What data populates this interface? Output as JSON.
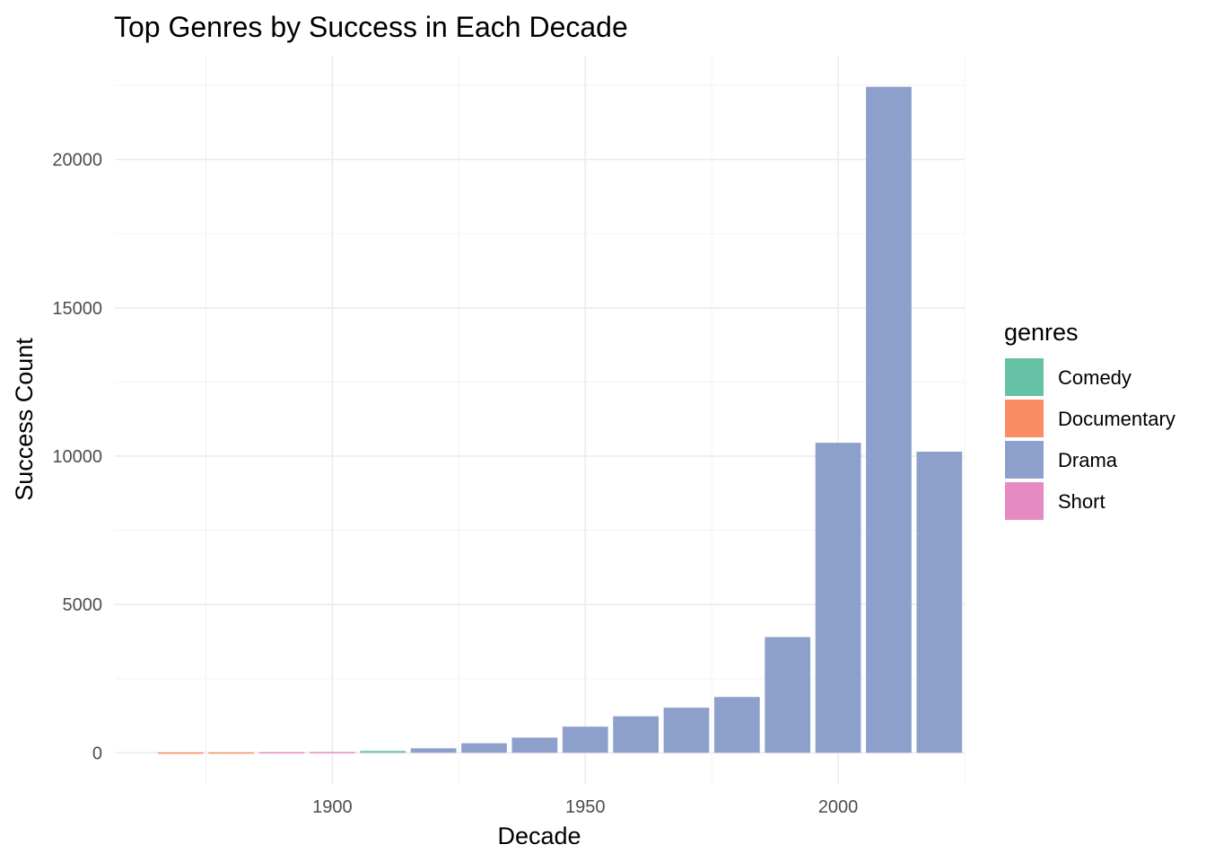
{
  "chart_data": {
    "type": "bar",
    "title": "Top Genres by Success in Each Decade",
    "xlabel": "Decade",
    "ylabel": "Success Count",
    "xlim": [
      1857,
      2025
    ],
    "ylim": [
      -1050,
      23500
    ],
    "x_ticks": [
      1900,
      1950,
      2000
    ],
    "y_ticks": [
      0,
      5000,
      10000,
      15000,
      20000
    ],
    "grid": true,
    "legend": {
      "title": "genres",
      "position": "right",
      "entries": [
        {
          "name": "Comedy",
          "color": "#66C2A5"
        },
        {
          "name": "Documentary",
          "color": "#FC8D62"
        },
        {
          "name": "Drama",
          "color": "#8DA0CB"
        },
        {
          "name": "Short",
          "color": "#E78AC3"
        }
      ]
    },
    "bars": [
      {
        "decade": 1870,
        "genre": "Documentary",
        "value": 12
      },
      {
        "decade": 1880,
        "genre": "Documentary",
        "value": 15
      },
      {
        "decade": 1890,
        "genre": "Short",
        "value": 20
      },
      {
        "decade": 1900,
        "genre": "Short",
        "value": 25
      },
      {
        "decade": 1910,
        "genre": "Comedy",
        "value": 60
      },
      {
        "decade": 1920,
        "genre": "Drama",
        "value": 150
      },
      {
        "decade": 1930,
        "genre": "Drama",
        "value": 320
      },
      {
        "decade": 1940,
        "genre": "Drama",
        "value": 510
      },
      {
        "decade": 1950,
        "genre": "Drama",
        "value": 880
      },
      {
        "decade": 1960,
        "genre": "Drama",
        "value": 1230
      },
      {
        "decade": 1970,
        "genre": "Drama",
        "value": 1520
      },
      {
        "decade": 1980,
        "genre": "Drama",
        "value": 1880
      },
      {
        "decade": 1990,
        "genre": "Drama",
        "value": 3900
      },
      {
        "decade": 2000,
        "genre": "Drama",
        "value": 10450
      },
      {
        "decade": 2010,
        "genre": "Drama",
        "value": 22450
      },
      {
        "decade": 2020,
        "genre": "Drama",
        "value": 10150
      }
    ]
  }
}
